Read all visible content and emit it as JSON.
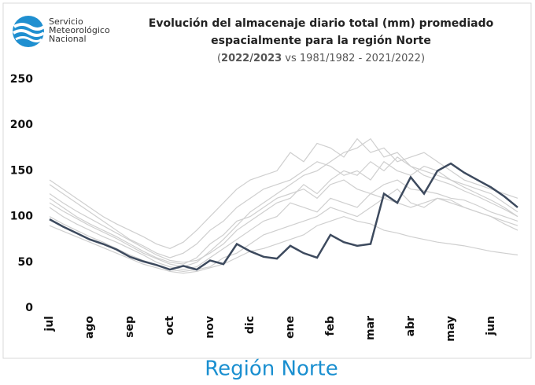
{
  "logo": {
    "lines": [
      "Servicio",
      "Meteorológico",
      "Nacional"
    ]
  },
  "footer": "Región Norte",
  "chart_data": {
    "type": "line",
    "title": [
      "Evolución del almacenaje diario total (mm) promediado",
      "espacialmente para la región Norte"
    ],
    "subtitle": {
      "open": "(",
      "bold": "2022/2023",
      "rest": " vs 1981/1982 - 2021/2022)"
    },
    "categories": [
      "jul",
      null,
      null,
      "ago",
      null,
      null,
      "sep",
      null,
      null,
      "oct",
      null,
      null,
      "nov",
      null,
      null,
      "dic",
      null,
      null,
      "ene",
      null,
      null,
      "feb",
      null,
      null,
      "mar",
      null,
      null,
      "abr",
      null,
      null,
      "may",
      null,
      null,
      "jun",
      null,
      null
    ],
    "ylim": [
      0,
      250
    ],
    "yticks": [
      0,
      50,
      100,
      150,
      200,
      250
    ],
    "grid": false,
    "series": [
      {
        "color": "#cfcfcf",
        "values": [
          135,
          125,
          115,
          105,
          95,
          85,
          75,
          68,
          60,
          55,
          60,
          70,
          85,
          95,
          110,
          120,
          130,
          135,
          140,
          150,
          160,
          155,
          145,
          150,
          140,
          160,
          150,
          145,
          155,
          150,
          140,
          135,
          130,
          125,
          115,
          105
        ]
      },
      {
        "color": "#cfcfcf",
        "values": [
          120,
          110,
          100,
          92,
          85,
          78,
          70,
          62,
          55,
          50,
          48,
          55,
          70,
          80,
          95,
          100,
          110,
          120,
          125,
          130,
          120,
          135,
          140,
          130,
          125,
          135,
          140,
          130,
          128,
          125,
          120,
          118,
          112,
          105,
          100,
          95
        ]
      },
      {
        "color": "#cfcfcf",
        "values": [
          110,
          100,
          92,
          85,
          78,
          72,
          65,
          58,
          50,
          45,
          42,
          45,
          55,
          65,
          75,
          85,
          95,
          100,
          115,
          110,
          105,
          120,
          115,
          110,
          125,
          120,
          130,
          115,
          110,
          120,
          115,
          110,
          105,
          100,
          95,
          90
        ]
      },
      {
        "color": "#cfcfcf",
        "values": [
          140,
          130,
          120,
          110,
          100,
          92,
          85,
          78,
          70,
          65,
          72,
          85,
          100,
          115,
          130,
          140,
          145,
          150,
          170,
          160,
          180,
          175,
          165,
          185,
          170,
          175,
          160,
          165,
          170,
          160,
          150,
          140,
          135,
          130,
          125,
          120
        ]
      },
      {
        "color": "#cfcfcf",
        "values": [
          100,
          92,
          85,
          78,
          72,
          65,
          58,
          52,
          47,
          42,
          40,
          42,
          45,
          55,
          60,
          70,
          80,
          85,
          90,
          95,
          100,
          110,
          105,
          100,
          110,
          120,
          115,
          110,
          115,
          120,
          118,
          110,
          105,
          100,
          92,
          85
        ]
      },
      {
        "color": "#cfcfcf",
        "values": [
          125,
          115,
          106,
          98,
          90,
          82,
          74,
          66,
          58,
          52,
          50,
          52,
          60,
          70,
          85,
          95,
          105,
          115,
          120,
          135,
          125,
          140,
          150,
          145,
          160,
          150,
          165,
          155,
          150,
          145,
          140,
          132,
          125,
          118,
          110,
          100
        ]
      },
      {
        "color": "#cfcfcf",
        "values": [
          115,
          106,
          98,
          90,
          83,
          76,
          68,
          60,
          54,
          48,
          45,
          50,
          62,
          75,
          90,
          105,
          115,
          125,
          135,
          145,
          150,
          160,
          170,
          175,
          185,
          165,
          170,
          155,
          145,
          140,
          135,
          128,
          122,
          115,
          108,
          100
        ]
      },
      {
        "color": "#cfcfcf",
        "values": [
          90,
          84,
          78,
          72,
          66,
          60,
          54,
          48,
          44,
          40,
          38,
          40,
          44,
          48,
          55,
          62,
          65,
          70,
          75,
          80,
          90,
          95,
          100,
          95,
          92,
          85,
          82,
          78,
          75,
          72,
          70,
          68,
          65,
          62,
          60,
          58
        ]
      },
      {
        "color": "#3d4a5e",
        "values": [
          97,
          89,
          82,
          75,
          70,
          64,
          56,
          51,
          47,
          42,
          46,
          42,
          52,
          48,
          70,
          62,
          56,
          54,
          68,
          60,
          55,
          80,
          72,
          68,
          70,
          125,
          115,
          143,
          125,
          150,
          158,
          148,
          140,
          132,
          122,
          110
        ]
      }
    ]
  }
}
